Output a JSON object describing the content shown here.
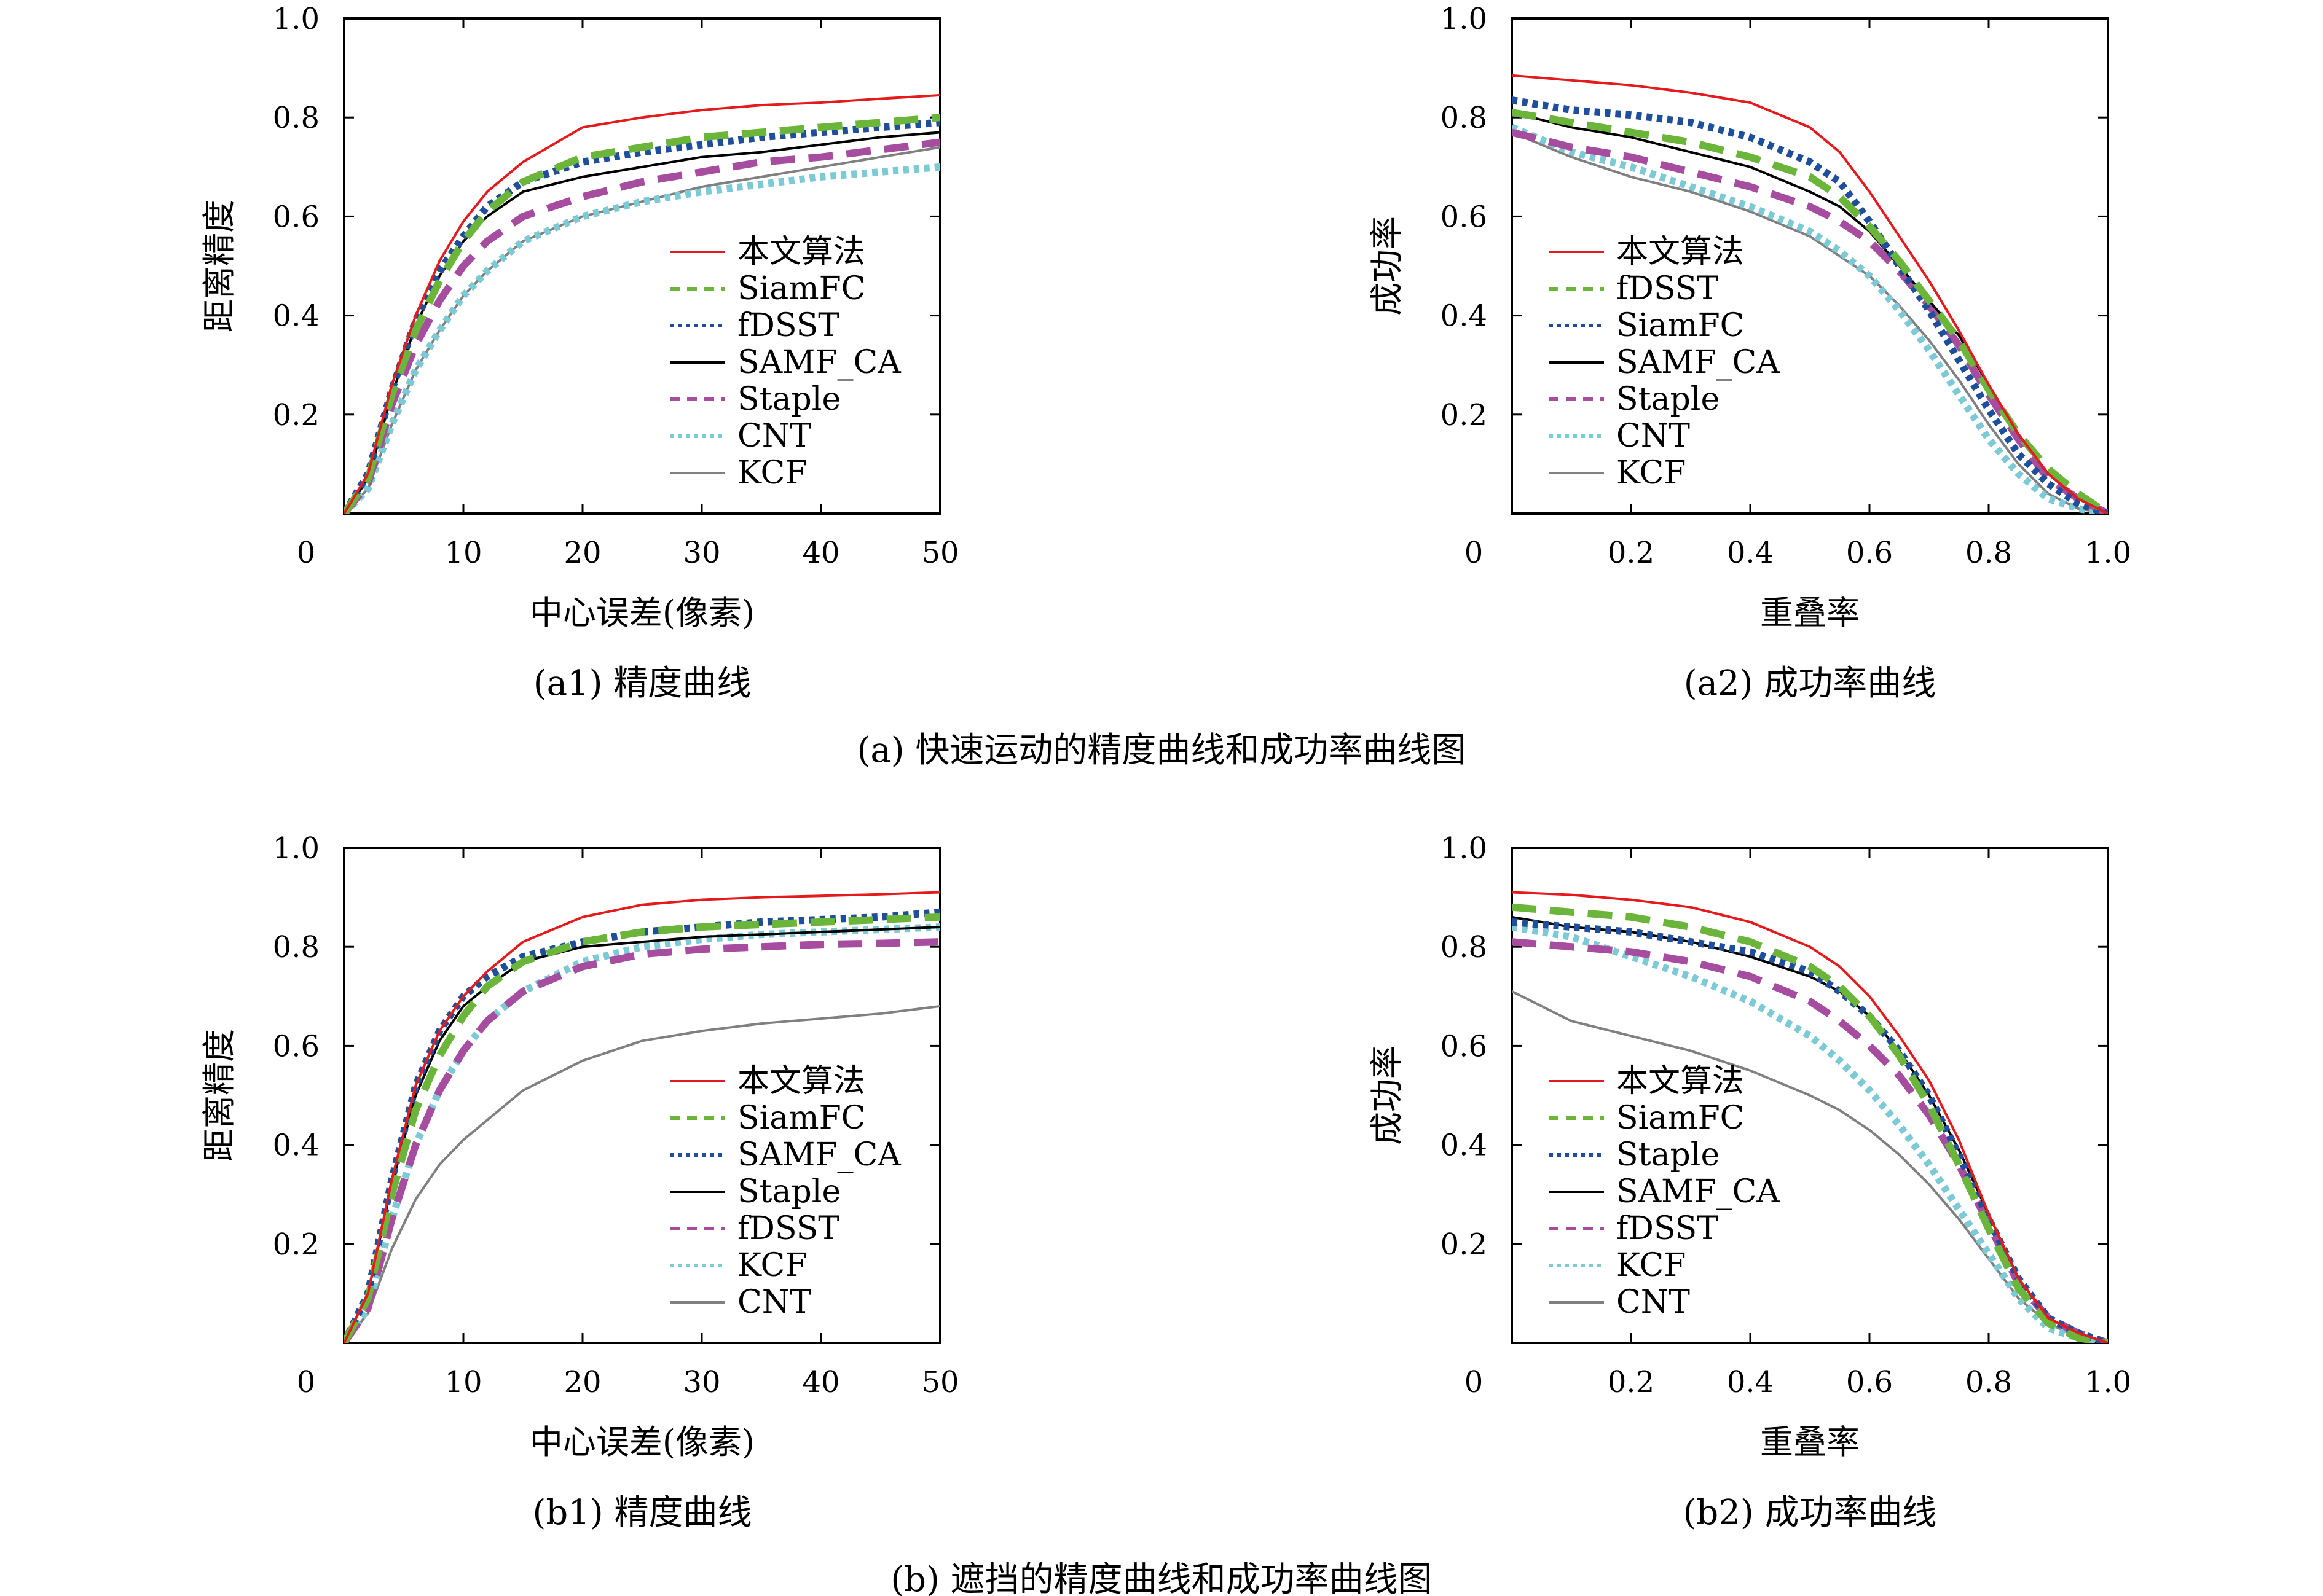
{
  "figure": {
    "captions": [
      "(a) 快速运动的精度曲线和成功率曲线图",
      "(b) 遮挡的精度曲线和成功率曲线图"
    ]
  },
  "colors": {
    "red": "#e41a1c",
    "green": "#6ab53a",
    "blue": "#1f4e9c",
    "black": "#000000",
    "purple": "#a64d9f",
    "cyan": "#7ccad6",
    "gray": "#808080"
  },
  "chart_data": [
    {
      "id": "a1",
      "type": "line",
      "subcaption": "(a1) 精度曲线",
      "xlabel": "中心误差(像素)",
      "ylabel": "距离精度",
      "xlim": [
        0,
        50
      ],
      "ylim": [
        0,
        1.0
      ],
      "xticks": [
        "0",
        "10",
        "20",
        "30",
        "40",
        "50"
      ],
      "yticks": [
        "0.2",
        "0.4",
        "0.6",
        "0.8",
        "1.0"
      ],
      "legend_position": "lower-right",
      "x": [
        0,
        2,
        4,
        6,
        8,
        10,
        12,
        15,
        20,
        25,
        30,
        35,
        40,
        45,
        50
      ],
      "series": [
        {
          "name": "本文算法",
          "color": "red",
          "style": "solid",
          "values": [
            0.0,
            0.08,
            0.26,
            0.4,
            0.51,
            0.59,
            0.65,
            0.71,
            0.78,
            0.8,
            0.815,
            0.825,
            0.83,
            0.838,
            0.845
          ]
        },
        {
          "name": "SiamFC",
          "color": "green",
          "style": "dashed",
          "values": [
            0.0,
            0.07,
            0.24,
            0.37,
            0.47,
            0.55,
            0.61,
            0.67,
            0.72,
            0.74,
            0.76,
            0.77,
            0.78,
            0.79,
            0.8
          ]
        },
        {
          "name": "fDSST",
          "color": "blue",
          "style": "dotted",
          "values": [
            0.0,
            0.08,
            0.25,
            0.39,
            0.49,
            0.56,
            0.62,
            0.67,
            0.71,
            0.73,
            0.745,
            0.76,
            0.77,
            0.78,
            0.79
          ]
        },
        {
          "name": "SAMF_CA",
          "color": "black",
          "style": "solid",
          "values": [
            0.0,
            0.07,
            0.24,
            0.38,
            0.48,
            0.55,
            0.6,
            0.65,
            0.68,
            0.7,
            0.72,
            0.73,
            0.745,
            0.76,
            0.77
          ]
        },
        {
          "name": "Staple",
          "color": "purple",
          "style": "dashed",
          "values": [
            0.0,
            0.06,
            0.22,
            0.34,
            0.43,
            0.5,
            0.55,
            0.6,
            0.64,
            0.67,
            0.69,
            0.71,
            0.72,
            0.735,
            0.75
          ]
        },
        {
          "name": "CNT",
          "color": "cyan",
          "style": "dotted",
          "values": [
            0.0,
            0.05,
            0.18,
            0.29,
            0.37,
            0.44,
            0.49,
            0.55,
            0.6,
            0.63,
            0.65,
            0.665,
            0.68,
            0.69,
            0.7
          ]
        },
        {
          "name": "KCF",
          "color": "gray",
          "style": "solid",
          "values": [
            0.0,
            0.05,
            0.18,
            0.29,
            0.37,
            0.44,
            0.49,
            0.55,
            0.6,
            0.63,
            0.66,
            0.68,
            0.7,
            0.72,
            0.74
          ]
        }
      ]
    },
    {
      "id": "a2",
      "type": "line",
      "subcaption": "(a2) 成功率曲线",
      "xlabel": "重叠率",
      "ylabel": "成功率",
      "xlim": [
        0,
        1.0
      ],
      "ylim": [
        0,
        1.0
      ],
      "xticks": [
        "0",
        "0.2",
        "0.4",
        "0.6",
        "0.8",
        "1.0"
      ],
      "yticks": [
        "0.2",
        "0.4",
        "0.6",
        "0.8",
        "1.0"
      ],
      "legend_position": "lower-left",
      "x": [
        0,
        0.1,
        0.2,
        0.3,
        0.4,
        0.5,
        0.55,
        0.6,
        0.65,
        0.7,
        0.75,
        0.8,
        0.85,
        0.9,
        0.95,
        1.0
      ],
      "series": [
        {
          "name": "本文算法",
          "color": "red",
          "style": "solid",
          "values": [
            0.885,
            0.875,
            0.865,
            0.85,
            0.83,
            0.78,
            0.73,
            0.65,
            0.56,
            0.47,
            0.37,
            0.26,
            0.16,
            0.08,
            0.03,
            0.0
          ]
        },
        {
          "name": "fDSST",
          "color": "green",
          "style": "dashed",
          "values": [
            0.81,
            0.79,
            0.77,
            0.75,
            0.72,
            0.68,
            0.64,
            0.58,
            0.51,
            0.43,
            0.35,
            0.25,
            0.16,
            0.09,
            0.04,
            0.0
          ]
        },
        {
          "name": "SiamFC",
          "color": "blue",
          "style": "dotted",
          "values": [
            0.835,
            0.815,
            0.805,
            0.79,
            0.76,
            0.71,
            0.67,
            0.59,
            0.5,
            0.41,
            0.31,
            0.21,
            0.12,
            0.06,
            0.02,
            0.0
          ]
        },
        {
          "name": "SAMF_CA",
          "color": "black",
          "style": "solid",
          "values": [
            0.81,
            0.78,
            0.76,
            0.73,
            0.7,
            0.65,
            0.62,
            0.57,
            0.5,
            0.43,
            0.36,
            0.26,
            0.16,
            0.08,
            0.03,
            0.0
          ]
        },
        {
          "name": "Staple",
          "color": "purple",
          "style": "dashed",
          "values": [
            0.77,
            0.74,
            0.72,
            0.69,
            0.66,
            0.62,
            0.59,
            0.55,
            0.49,
            0.42,
            0.34,
            0.24,
            0.15,
            0.07,
            0.03,
            0.0
          ]
        },
        {
          "name": "CNT",
          "color": "cyan",
          "style": "dotted",
          "values": [
            0.78,
            0.73,
            0.7,
            0.66,
            0.62,
            0.57,
            0.53,
            0.48,
            0.41,
            0.33,
            0.24,
            0.15,
            0.08,
            0.03,
            0.01,
            0.0
          ]
        },
        {
          "name": "KCF",
          "color": "gray",
          "style": "solid",
          "values": [
            0.77,
            0.72,
            0.68,
            0.65,
            0.61,
            0.56,
            0.52,
            0.48,
            0.42,
            0.35,
            0.27,
            0.18,
            0.1,
            0.04,
            0.01,
            0.0
          ]
        }
      ]
    },
    {
      "id": "b1",
      "type": "line",
      "subcaption": "(b1) 精度曲线",
      "xlabel": "中心误差(像素)",
      "ylabel": "距离精度",
      "xlim": [
        0,
        50
      ],
      "ylim": [
        0,
        1.0
      ],
      "xticks": [
        "0",
        "10",
        "20",
        "30",
        "40",
        "50"
      ],
      "yticks": [
        "0.2",
        "0.4",
        "0.6",
        "0.8",
        "1.0"
      ],
      "legend_position": "lower-right",
      "x": [
        0,
        2,
        4,
        6,
        8,
        10,
        12,
        15,
        20,
        25,
        30,
        35,
        40,
        45,
        50
      ],
      "series": [
        {
          "name": "本文算法",
          "color": "red",
          "style": "solid",
          "values": [
            0.0,
            0.1,
            0.33,
            0.52,
            0.63,
            0.7,
            0.75,
            0.81,
            0.86,
            0.885,
            0.895,
            0.9,
            0.903,
            0.906,
            0.91
          ]
        },
        {
          "name": "SiamFC",
          "color": "green",
          "style": "dashed",
          "values": [
            0.0,
            0.09,
            0.3,
            0.47,
            0.58,
            0.66,
            0.72,
            0.77,
            0.81,
            0.83,
            0.84,
            0.845,
            0.85,
            0.855,
            0.86
          ]
        },
        {
          "name": "SAMF_CA",
          "color": "blue",
          "style": "dotted",
          "values": [
            0.0,
            0.1,
            0.33,
            0.52,
            0.63,
            0.7,
            0.74,
            0.78,
            0.81,
            0.83,
            0.84,
            0.85,
            0.855,
            0.86,
            0.87
          ]
        },
        {
          "name": "Staple",
          "color": "black",
          "style": "solid",
          "values": [
            0.0,
            0.1,
            0.32,
            0.5,
            0.61,
            0.68,
            0.72,
            0.77,
            0.8,
            0.81,
            0.82,
            0.825,
            0.83,
            0.835,
            0.84
          ]
        },
        {
          "name": "fDSST",
          "color": "purple",
          "style": "dashed",
          "values": [
            0.0,
            0.07,
            0.25,
            0.4,
            0.51,
            0.59,
            0.65,
            0.71,
            0.76,
            0.785,
            0.795,
            0.8,
            0.805,
            0.807,
            0.81
          ]
        },
        {
          "name": "KCF",
          "color": "cyan",
          "style": "dotted",
          "values": [
            0.0,
            0.07,
            0.25,
            0.4,
            0.51,
            0.59,
            0.65,
            0.71,
            0.77,
            0.8,
            0.815,
            0.825,
            0.83,
            0.835,
            0.84
          ]
        },
        {
          "name": "CNT",
          "color": "gray",
          "style": "solid",
          "values": [
            0.0,
            0.06,
            0.19,
            0.29,
            0.36,
            0.41,
            0.45,
            0.51,
            0.57,
            0.61,
            0.63,
            0.645,
            0.655,
            0.665,
            0.68
          ]
        }
      ]
    },
    {
      "id": "b2",
      "type": "line",
      "subcaption": "(b2) 成功率曲线",
      "xlabel": "重叠率",
      "ylabel": "成功率",
      "xlim": [
        0,
        1.0
      ],
      "ylim": [
        0,
        1.0
      ],
      "xticks": [
        "0",
        "0.2",
        "0.4",
        "0.6",
        "0.8",
        "1.0"
      ],
      "yticks": [
        "0.2",
        "0.4",
        "0.6",
        "0.8",
        "1.0"
      ],
      "legend_position": "lower-left",
      "x": [
        0,
        0.1,
        0.2,
        0.3,
        0.4,
        0.5,
        0.55,
        0.6,
        0.65,
        0.7,
        0.75,
        0.8,
        0.85,
        0.9,
        0.95,
        1.0
      ],
      "series": [
        {
          "name": "本文算法",
          "color": "red",
          "style": "solid",
          "values": [
            0.91,
            0.905,
            0.895,
            0.88,
            0.85,
            0.8,
            0.76,
            0.7,
            0.62,
            0.53,
            0.41,
            0.26,
            0.13,
            0.05,
            0.02,
            0.0
          ]
        },
        {
          "name": "SiamFC",
          "color": "green",
          "style": "dashed",
          "values": [
            0.88,
            0.87,
            0.86,
            0.84,
            0.81,
            0.76,
            0.72,
            0.66,
            0.58,
            0.48,
            0.36,
            0.23,
            0.11,
            0.04,
            0.01,
            0.0
          ]
        },
        {
          "name": "Staple",
          "color": "blue",
          "style": "dotted",
          "values": [
            0.85,
            0.84,
            0.83,
            0.81,
            0.79,
            0.75,
            0.71,
            0.66,
            0.59,
            0.5,
            0.38,
            0.25,
            0.13,
            0.05,
            0.02,
            0.0
          ]
        },
        {
          "name": "SAMF_CA",
          "color": "black",
          "style": "solid",
          "values": [
            0.86,
            0.84,
            0.83,
            0.81,
            0.78,
            0.74,
            0.71,
            0.66,
            0.59,
            0.5,
            0.39,
            0.26,
            0.13,
            0.05,
            0.02,
            0.0
          ]
        },
        {
          "name": "fDSST",
          "color": "purple",
          "style": "dashed",
          "values": [
            0.81,
            0.8,
            0.79,
            0.77,
            0.74,
            0.69,
            0.65,
            0.6,
            0.54,
            0.46,
            0.36,
            0.24,
            0.12,
            0.05,
            0.02,
            0.0
          ]
        },
        {
          "name": "KCF",
          "color": "cyan",
          "style": "dotted",
          "values": [
            0.84,
            0.82,
            0.78,
            0.74,
            0.69,
            0.62,
            0.57,
            0.51,
            0.44,
            0.36,
            0.27,
            0.18,
            0.09,
            0.03,
            0.01,
            0.0
          ]
        },
        {
          "name": "CNT",
          "color": "gray",
          "style": "solid",
          "values": [
            0.71,
            0.65,
            0.62,
            0.59,
            0.55,
            0.5,
            0.47,
            0.43,
            0.38,
            0.32,
            0.25,
            0.17,
            0.09,
            0.04,
            0.01,
            0.0
          ]
        }
      ]
    }
  ]
}
